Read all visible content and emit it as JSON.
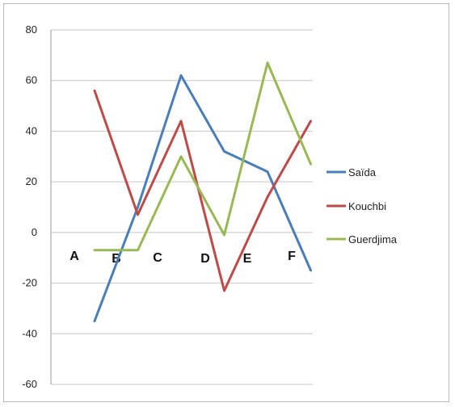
{
  "chart_data": {
    "type": "line",
    "categories": [
      "A",
      "B",
      "C",
      "D",
      "E",
      "F"
    ],
    "x_points": 6,
    "ylim": [
      -60,
      80
    ],
    "yticks": [
      -60,
      -40,
      -20,
      0,
      20,
      40,
      60,
      80
    ],
    "grid": true,
    "legend_position": "right",
    "series": [
      {
        "name": "Saïda",
        "color": "#4A7EBB",
        "values": [
          -35,
          10,
          62,
          32,
          24,
          -15
        ]
      },
      {
        "name": "Kouchbi",
        "color": "#BE4B48",
        "values": [
          56,
          7,
          44,
          -23,
          14,
          44
        ]
      },
      {
        "name": "Guerdjima",
        "color": "#98B954",
        "values": [
          -7,
          -7,
          30,
          -1,
          67,
          27
        ]
      }
    ]
  }
}
